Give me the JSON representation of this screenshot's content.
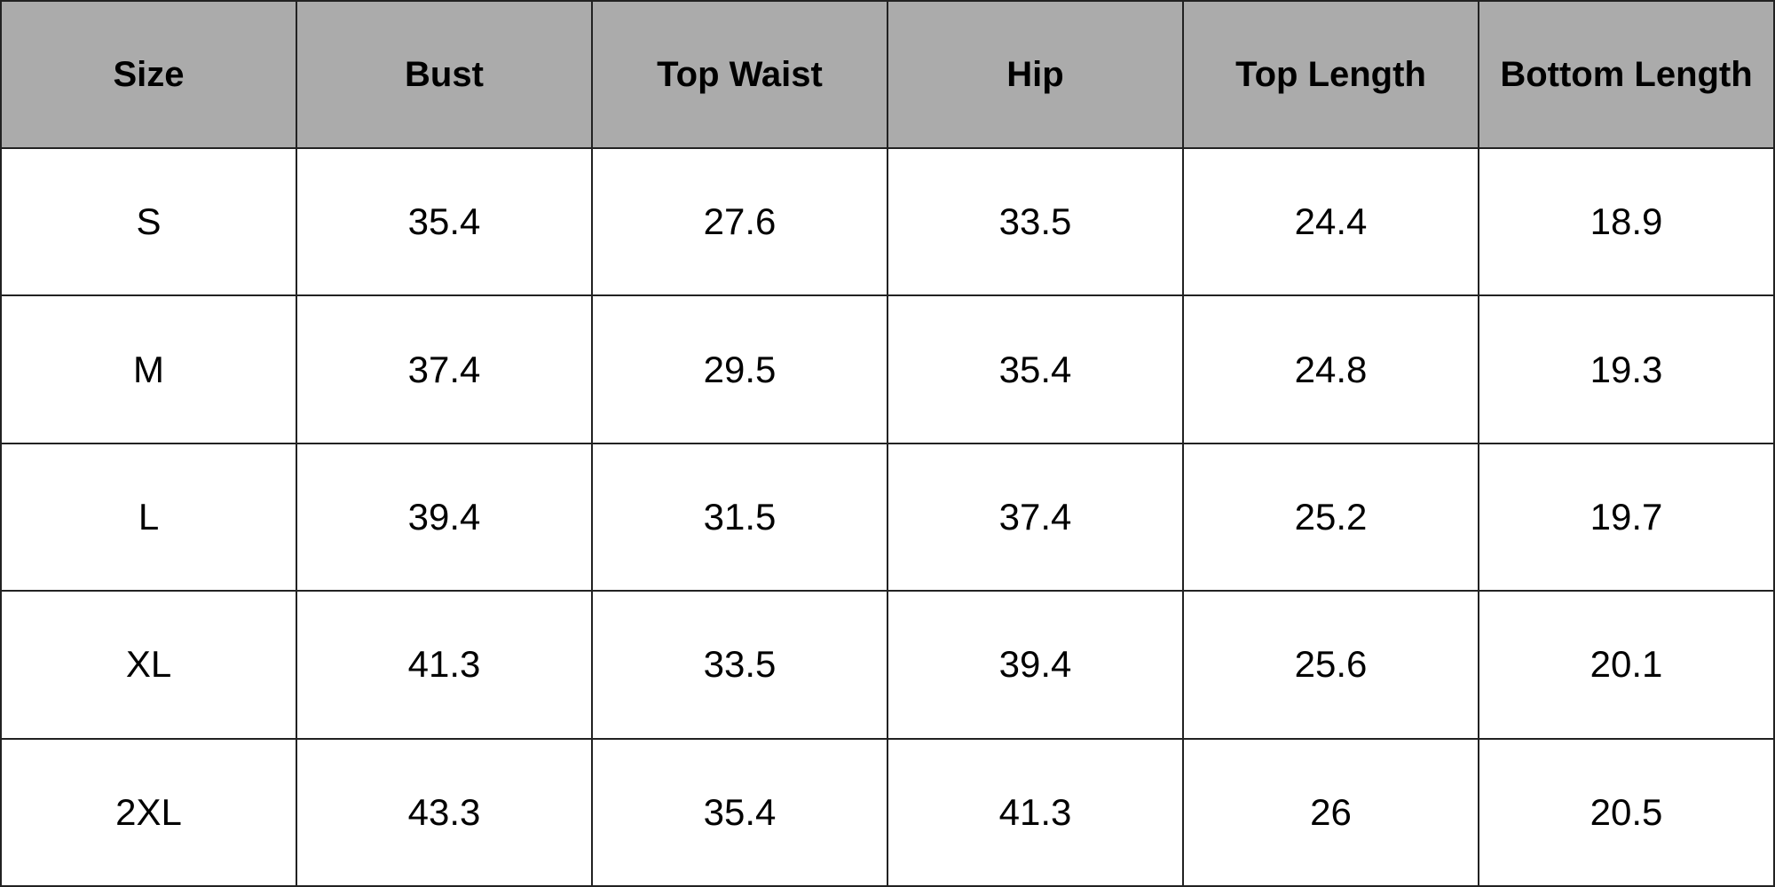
{
  "table": {
    "header": [
      "Size",
      "Bust",
      "Top Waist",
      "Hip",
      "Top Length",
      "Bottom Length"
    ],
    "rows": [
      [
        "S",
        "35.4",
        "27.6",
        "33.5",
        "24.4",
        "18.9"
      ],
      [
        "M",
        "37.4",
        "29.5",
        "35.4",
        "24.8",
        "19.3"
      ],
      [
        "L",
        "39.4",
        "31.5",
        "37.4",
        "25.2",
        "19.7"
      ],
      [
        "XL",
        "41.3",
        "33.5",
        "39.4",
        "25.6",
        "20.1"
      ],
      [
        "2XL",
        "43.3",
        "35.4",
        "41.3",
        "26",
        "20.5"
      ]
    ]
  }
}
